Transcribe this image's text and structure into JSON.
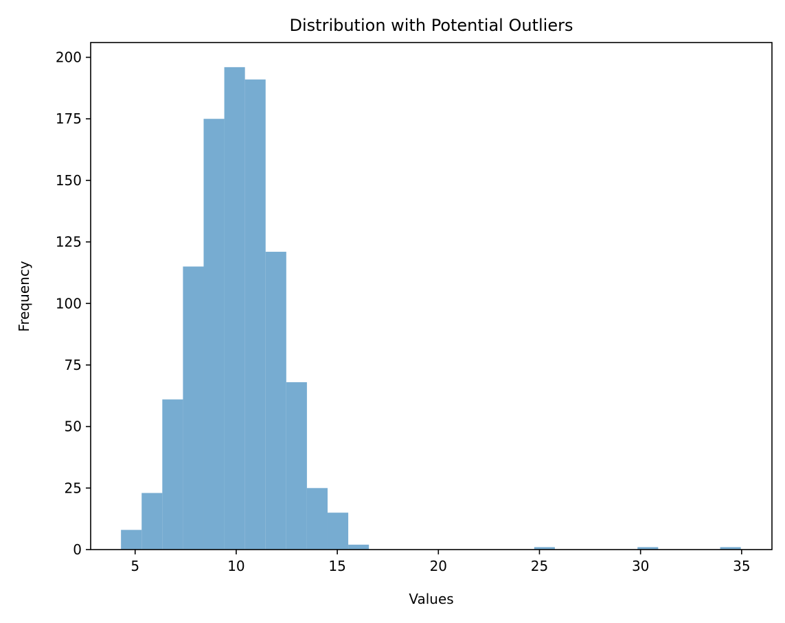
{
  "chart_data": {
    "type": "bar",
    "title": "Distribution with Potential Outliers",
    "xlabel": "Values",
    "ylabel": "Frequency",
    "xlim": [
      2.8,
      36.5
    ],
    "ylim": [
      0,
      206
    ],
    "grid": false,
    "bar_color": "#77acd1",
    "x_ticks": [
      5,
      10,
      15,
      20,
      25,
      30,
      35
    ],
    "y_ticks": [
      0,
      25,
      50,
      75,
      100,
      125,
      150,
      175,
      200
    ],
    "bin_start": 4.3,
    "bin_width": 1.022,
    "counts": [
      8,
      23,
      61,
      115,
      175,
      196,
      191,
      121,
      68,
      25,
      15,
      2,
      0,
      0,
      0,
      0,
      0,
      0,
      0,
      0,
      1,
      0,
      0,
      0,
      0,
      1,
      0,
      0,
      0,
      1
    ]
  }
}
